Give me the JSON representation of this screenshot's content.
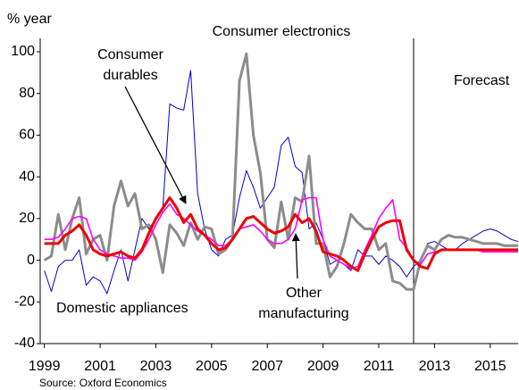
{
  "chart_data": {
    "type": "line",
    "y_label": "% year",
    "annotations": {
      "electronics": "Consumer electronics",
      "durables": [
        "Consumer",
        "durables"
      ],
      "appliances": "Domestic appliances",
      "other": [
        "Other",
        "manufacturing"
      ],
      "forecast": "Forecast"
    },
    "source": "Source: Oxford Economics",
    "forecast_x": 2012.25,
    "xlim": [
      1998.85,
      2016.0
    ],
    "xticks": [
      1999,
      2001,
      2003,
      2005,
      2007,
      2009,
      2011,
      2013,
      2015
    ],
    "ylim": [
      -40,
      100
    ],
    "yticks": [
      -40,
      -20,
      0,
      20,
      40,
      60,
      80,
      100
    ],
    "x": [
      1999,
      1999.25,
      1999.5,
      1999.75,
      2000,
      2000.25,
      2000.5,
      2000.75,
      2001,
      2001.25,
      2001.5,
      2001.75,
      2002,
      2002.25,
      2002.5,
      2002.75,
      2003,
      2003.25,
      2003.5,
      2003.75,
      2004,
      2004.25,
      2004.5,
      2004.75,
      2005,
      2005.25,
      2005.5,
      2005.75,
      2006,
      2006.25,
      2006.5,
      2006.75,
      2007,
      2007.25,
      2007.5,
      2007.75,
      2008,
      2008.25,
      2008.5,
      2008.75,
      2009,
      2009.25,
      2009.5,
      2009.75,
      2010,
      2010.25,
      2010.5,
      2010.75,
      2011,
      2011.25,
      2011.5,
      2011.75,
      2012,
      2012.25,
      2012.5,
      2012.75,
      2013,
      2013.25,
      2013.5,
      2013.75,
      2014,
      2014.25,
      2014.5,
      2014.75,
      2015,
      2015.25,
      2015.5,
      2015.75,
      2016
    ],
    "series": [
      {
        "name": "Domestic appliances",
        "color": "#0000cc",
        "width": 1,
        "values": [
          -5,
          -15,
          -3,
          0,
          0,
          5,
          -12,
          -8,
          -10,
          -16,
          -5,
          5,
          -10,
          5,
          20,
          15,
          20,
          25,
          75,
          73,
          72,
          91,
          32,
          15,
          5,
          2,
          10,
          12,
          30,
          43,
          35,
          25,
          30,
          35,
          55,
          59,
          45,
          42,
          15,
          18,
          10,
          -2,
          0,
          -2,
          -5,
          5,
          2,
          2,
          -2,
          2,
          0,
          -3,
          -8,
          -3,
          0,
          8,
          9,
          7,
          5,
          5,
          8,
          10,
          12,
          14,
          15,
          14,
          12,
          10,
          9
        ]
      },
      {
        "name": "Consumer electronics",
        "color": "#8c8c8c",
        "width": 3,
        "values": [
          0,
          2,
          22,
          5,
          20,
          30,
          3,
          10,
          12,
          0,
          26,
          38,
          26,
          32,
          15,
          17,
          10,
          -6,
          17,
          13,
          7,
          18,
          10,
          16,
          15,
          3,
          5,
          10,
          86,
          99,
          60,
          42,
          10,
          6,
          28,
          10,
          30,
          28,
          50,
          8,
          8,
          -8,
          -3,
          8,
          22,
          18,
          15,
          15,
          5,
          8,
          -10,
          -11,
          -14,
          -14,
          0,
          7,
          5,
          10,
          12,
          11,
          11,
          10,
          9,
          8,
          8,
          8,
          7,
          7,
          7
        ]
      },
      {
        "name": "Other manufacturing",
        "color": "#ff00ff",
        "width": 1.6,
        "values": [
          10,
          10,
          11,
          15,
          20,
          21,
          20,
          10,
          5,
          3,
          2,
          1,
          1,
          0,
          4,
          10,
          17,
          23,
          27,
          22,
          20,
          17,
          14,
          12,
          10,
          7,
          7,
          10,
          15,
          16,
          17,
          14,
          10,
          8,
          8,
          10,
          15,
          29,
          30,
          30,
          10,
          2,
          0,
          -2,
          -4,
          -3,
          5,
          12,
          20,
          25,
          29,
          10,
          6,
          0,
          -2,
          3,
          4,
          5,
          5,
          5,
          5,
          5,
          5,
          4,
          4,
          4,
          4,
          4,
          4
        ]
      },
      {
        "name": "Consumer durables",
        "color": "#ee0000",
        "width": 3,
        "values": [
          8,
          8,
          8,
          12,
          14,
          17,
          12,
          5,
          3,
          2,
          3,
          4,
          2,
          1,
          5,
          13,
          20,
          25,
          30,
          25,
          18,
          22,
          15,
          12,
          8,
          5,
          6,
          10,
          15,
          20,
          21,
          18,
          15,
          13,
          14,
          16,
          22,
          18,
          20,
          14,
          4,
          3,
          2,
          0,
          -3,
          -5,
          3,
          10,
          16,
          18,
          19,
          19,
          5,
          0,
          -3,
          -4,
          3,
          5,
          5,
          5,
          5,
          5,
          5,
          5,
          5,
          5,
          5,
          5,
          5
        ]
      }
    ]
  }
}
